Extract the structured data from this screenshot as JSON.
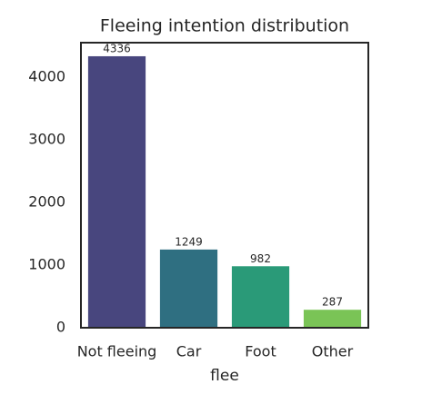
{
  "chart_data": {
    "type": "bar",
    "title": "Fleeing intention distribution",
    "x_label": "flee",
    "categories": [
      "Not fleeing",
      "Car",
      "Foot",
      "Other"
    ],
    "values": [
      4336,
      1249,
      982,
      287
    ],
    "colors": [
      "#48467e",
      "#2f6f81",
      "#2a9a78",
      "#7ac456"
    ],
    "ylim": [
      0,
      4553
    ],
    "yticks": [
      0,
      1000,
      2000,
      3000,
      4000
    ],
    "grid": false
  }
}
